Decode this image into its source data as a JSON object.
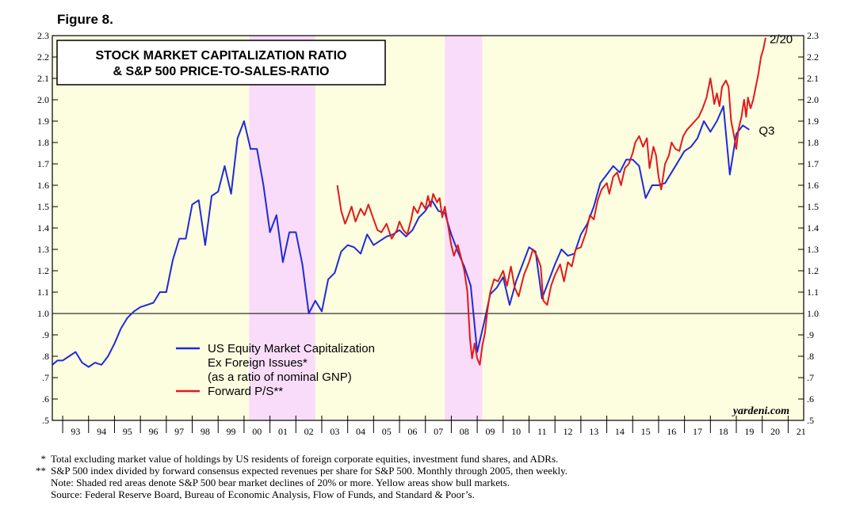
{
  "figure_label": "Figure 8.",
  "title_lines": [
    "STOCK MARKET CAPITALIZATION RATIO",
    "& S&P 500 PRICE-TO-SALES-RATIO"
  ],
  "credit": "yardeni.com",
  "colors": {
    "bull": "#fdfde0",
    "bear": "#f9dcf9",
    "series_blue": "#1f2bd6",
    "series_red": "#e01b1b"
  },
  "footnotes": [
    {
      "mark": "*",
      "text": "Total excluding market value of holdings by US residents of foreign corporate equities, investment fund shares, and ADRs."
    },
    {
      "mark": "**",
      "text": "S&P 500 index divided by forward consensus expected revenues per share for S&P 500. Monthly through 2005, then weekly."
    },
    {
      "mark": "",
      "text": "Note: Shaded red areas denote S&P 500 bear market declines of 20% or more. Yellow areas show bull markets."
    },
    {
      "mark": "",
      "text": "Source: Federal Reserve Board, Bureau of Economic Analysis, Flow of Funds, and Standard & Poor’s."
    }
  ],
  "chart_data": {
    "type": "line",
    "x_range": [
      1992.6,
      2021.6
    ],
    "ylim": [
      0.5,
      2.3
    ],
    "y_ticks": [
      {
        "v": 0.5,
        "label": ".5"
      },
      {
        "v": 0.6,
        "label": ".6"
      },
      {
        "v": 0.7,
        "label": ".7"
      },
      {
        "v": 0.8,
        "label": ".8"
      },
      {
        "v": 0.9,
        "label": ".9"
      },
      {
        "v": 1.0,
        "label": "1.0"
      },
      {
        "v": 1.1,
        "label": "1.1"
      },
      {
        "v": 1.2,
        "label": "1.2"
      },
      {
        "v": 1.3,
        "label": "1.3"
      },
      {
        "v": 1.4,
        "label": "1.4"
      },
      {
        "v": 1.5,
        "label": "1.5"
      },
      {
        "v": 1.6,
        "label": "1.6"
      },
      {
        "v": 1.7,
        "label": "1.7"
      },
      {
        "v": 1.8,
        "label": "1.8"
      },
      {
        "v": 1.9,
        "label": "1.9"
      },
      {
        "v": 2.0,
        "label": "2.0"
      },
      {
        "v": 2.1,
        "label": "2.1"
      },
      {
        "v": 2.2,
        "label": "2.2"
      },
      {
        "v": 2.3,
        "label": "2.3"
      }
    ],
    "x_tick_labels": [
      "93",
      "94",
      "95",
      "96",
      "97",
      "98",
      "99",
      "00",
      "01",
      "02",
      "03",
      "04",
      "05",
      "06",
      "07",
      "08",
      "09",
      "10",
      "11",
      "12",
      "13",
      "14",
      "15",
      "16",
      "17",
      "18",
      "19",
      "20",
      "21"
    ],
    "reference_line": 1.0,
    "shaded_regions": [
      {
        "kind": "bull",
        "from": 1992.6,
        "to": 2000.2
      },
      {
        "kind": "bear",
        "from": 2000.2,
        "to": 2002.75
      },
      {
        "kind": "bull",
        "from": 2002.75,
        "to": 2007.75
      },
      {
        "kind": "bear",
        "from": 2007.75,
        "to": 2009.2
      },
      {
        "kind": "bull",
        "from": 2009.2,
        "to": 2021.6
      }
    ],
    "series": [
      {
        "name": "US Equity Market Capitalization Ex Foreign Issues* (as a ratio of nominal GNP)",
        "legend_lines": [
          "US Equity Market Capitalization",
          "Ex Foreign Issues*",
          "(as a ratio of nominal GNP)"
        ],
        "color": "#1f2bd6",
        "end_label": "Q3",
        "points": [
          [
            1992.6,
            0.76
          ],
          [
            1992.8,
            0.78
          ],
          [
            1993.0,
            0.78
          ],
          [
            1993.25,
            0.8
          ],
          [
            1993.5,
            0.82
          ],
          [
            1993.75,
            0.77
          ],
          [
            1994.0,
            0.75
          ],
          [
            1994.25,
            0.77
          ],
          [
            1994.5,
            0.76
          ],
          [
            1994.75,
            0.8
          ],
          [
            1995.0,
            0.86
          ],
          [
            1995.25,
            0.93
          ],
          [
            1995.5,
            0.98
          ],
          [
            1995.75,
            1.01
          ],
          [
            1996.0,
            1.03
          ],
          [
            1996.25,
            1.04
          ],
          [
            1996.5,
            1.05
          ],
          [
            1996.75,
            1.1
          ],
          [
            1997.0,
            1.1
          ],
          [
            1997.25,
            1.25
          ],
          [
            1997.5,
            1.35
          ],
          [
            1997.75,
            1.35
          ],
          [
            1998.0,
            1.51
          ],
          [
            1998.25,
            1.53
          ],
          [
            1998.5,
            1.32
          ],
          [
            1998.75,
            1.55
          ],
          [
            1999.0,
            1.57
          ],
          [
            1999.25,
            1.69
          ],
          [
            1999.5,
            1.56
          ],
          [
            1999.75,
            1.82
          ],
          [
            2000.0,
            1.9
          ],
          [
            2000.25,
            1.77
          ],
          [
            2000.5,
            1.77
          ],
          [
            2000.75,
            1.6
          ],
          [
            2001.0,
            1.38
          ],
          [
            2001.25,
            1.46
          ],
          [
            2001.5,
            1.24
          ],
          [
            2001.75,
            1.38
          ],
          [
            2002.0,
            1.38
          ],
          [
            2002.25,
            1.23
          ],
          [
            2002.5,
            1.0
          ],
          [
            2002.75,
            1.06
          ],
          [
            2003.0,
            1.01
          ],
          [
            2003.25,
            1.16
          ],
          [
            2003.5,
            1.19
          ],
          [
            2003.75,
            1.29
          ],
          [
            2004.0,
            1.32
          ],
          [
            2004.25,
            1.31
          ],
          [
            2004.5,
            1.28
          ],
          [
            2004.75,
            1.37
          ],
          [
            2005.0,
            1.32
          ],
          [
            2005.25,
            1.34
          ],
          [
            2005.5,
            1.36
          ],
          [
            2005.75,
            1.37
          ],
          [
            2006.0,
            1.39
          ],
          [
            2006.25,
            1.36
          ],
          [
            2006.5,
            1.39
          ],
          [
            2006.75,
            1.45
          ],
          [
            2007.0,
            1.48
          ],
          [
            2007.25,
            1.53
          ],
          [
            2007.5,
            1.48
          ],
          [
            2007.75,
            1.47
          ],
          [
            2008.0,
            1.37
          ],
          [
            2008.25,
            1.29
          ],
          [
            2008.5,
            1.22
          ],
          [
            2008.75,
            1.13
          ],
          [
            2009.0,
            0.82
          ],
          [
            2009.25,
            0.95
          ],
          [
            2009.5,
            1.09
          ],
          [
            2009.75,
            1.12
          ],
          [
            2010.0,
            1.17
          ],
          [
            2010.25,
            1.04
          ],
          [
            2010.5,
            1.15
          ],
          [
            2010.75,
            1.23
          ],
          [
            2011.0,
            1.31
          ],
          [
            2011.25,
            1.29
          ],
          [
            2011.5,
            1.07
          ],
          [
            2011.75,
            1.15
          ],
          [
            2012.0,
            1.23
          ],
          [
            2012.25,
            1.3
          ],
          [
            2012.5,
            1.27
          ],
          [
            2012.75,
            1.28
          ],
          [
            2013.0,
            1.37
          ],
          [
            2013.25,
            1.42
          ],
          [
            2013.5,
            1.5
          ],
          [
            2013.75,
            1.61
          ],
          [
            2014.0,
            1.65
          ],
          [
            2014.25,
            1.69
          ],
          [
            2014.5,
            1.66
          ],
          [
            2014.75,
            1.72
          ],
          [
            2015.0,
            1.72
          ],
          [
            2015.25,
            1.69
          ],
          [
            2015.5,
            1.54
          ],
          [
            2015.75,
            1.6
          ],
          [
            2016.0,
            1.6
          ],
          [
            2016.25,
            1.61
          ],
          [
            2016.5,
            1.66
          ],
          [
            2016.75,
            1.71
          ],
          [
            2017.0,
            1.76
          ],
          [
            2017.25,
            1.78
          ],
          [
            2017.5,
            1.82
          ],
          [
            2017.75,
            1.9
          ],
          [
            2018.0,
            1.85
          ],
          [
            2018.25,
            1.9
          ],
          [
            2018.5,
            1.97
          ],
          [
            2018.75,
            1.65
          ],
          [
            2019.0,
            1.84
          ],
          [
            2019.25,
            1.88
          ],
          [
            2019.5,
            1.86
          ]
        ]
      },
      {
        "name": "Forward P/S**",
        "legend_lines": [
          "Forward P/S**"
        ],
        "color": "#e01b1b",
        "end_label": "2/20",
        "points": [
          [
            2003.6,
            1.6
          ],
          [
            2003.75,
            1.48
          ],
          [
            2003.9,
            1.42
          ],
          [
            2004.0,
            1.45
          ],
          [
            2004.15,
            1.5
          ],
          [
            2004.3,
            1.43
          ],
          [
            2004.5,
            1.49
          ],
          [
            2004.65,
            1.46
          ],
          [
            2004.8,
            1.51
          ],
          [
            2005.0,
            1.44
          ],
          [
            2005.15,
            1.39
          ],
          [
            2005.3,
            1.38
          ],
          [
            2005.5,
            1.42
          ],
          [
            2005.7,
            1.35
          ],
          [
            2005.9,
            1.39
          ],
          [
            2006.0,
            1.43
          ],
          [
            2006.15,
            1.39
          ],
          [
            2006.3,
            1.37
          ],
          [
            2006.45,
            1.44
          ],
          [
            2006.55,
            1.5
          ],
          [
            2006.7,
            1.47
          ],
          [
            2006.85,
            1.52
          ],
          [
            2007.0,
            1.49
          ],
          [
            2007.1,
            1.55
          ],
          [
            2007.2,
            1.5
          ],
          [
            2007.3,
            1.56
          ],
          [
            2007.45,
            1.52
          ],
          [
            2007.55,
            1.54
          ],
          [
            2007.65,
            1.45
          ],
          [
            2007.75,
            1.5
          ],
          [
            2007.85,
            1.43
          ],
          [
            2008.0,
            1.32
          ],
          [
            2008.1,
            1.27
          ],
          [
            2008.25,
            1.32
          ],
          [
            2008.4,
            1.25
          ],
          [
            2008.5,
            1.2
          ],
          [
            2008.62,
            1.1
          ],
          [
            2008.72,
            0.88
          ],
          [
            2008.8,
            0.79
          ],
          [
            2008.9,
            0.86
          ],
          [
            2009.0,
            0.79
          ],
          [
            2009.1,
            0.76
          ],
          [
            2009.2,
            0.85
          ],
          [
            2009.3,
            0.91
          ],
          [
            2009.4,
            1.02
          ],
          [
            2009.5,
            1.1
          ],
          [
            2009.65,
            1.16
          ],
          [
            2009.8,
            1.15
          ],
          [
            2010.0,
            1.2
          ],
          [
            2010.15,
            1.13
          ],
          [
            2010.3,
            1.22
          ],
          [
            2010.45,
            1.12
          ],
          [
            2010.6,
            1.08
          ],
          [
            2010.8,
            1.18
          ],
          [
            2011.0,
            1.24
          ],
          [
            2011.15,
            1.3
          ],
          [
            2011.3,
            1.27
          ],
          [
            2011.45,
            1.22
          ],
          [
            2011.55,
            1.06
          ],
          [
            2011.7,
            1.04
          ],
          [
            2011.85,
            1.13
          ],
          [
            2012.0,
            1.18
          ],
          [
            2012.2,
            1.23
          ],
          [
            2012.35,
            1.15
          ],
          [
            2012.5,
            1.24
          ],
          [
            2012.65,
            1.22
          ],
          [
            2012.8,
            1.3
          ],
          [
            2013.0,
            1.31
          ],
          [
            2013.2,
            1.38
          ],
          [
            2013.35,
            1.46
          ],
          [
            2013.5,
            1.44
          ],
          [
            2013.65,
            1.53
          ],
          [
            2013.8,
            1.58
          ],
          [
            2014.0,
            1.61
          ],
          [
            2014.1,
            1.56
          ],
          [
            2014.25,
            1.64
          ],
          [
            2014.4,
            1.66
          ],
          [
            2014.55,
            1.6
          ],
          [
            2014.7,
            1.68
          ],
          [
            2014.85,
            1.7
          ],
          [
            2015.0,
            1.75
          ],
          [
            2015.1,
            1.8
          ],
          [
            2015.25,
            1.83
          ],
          [
            2015.4,
            1.78
          ],
          [
            2015.55,
            1.82
          ],
          [
            2015.65,
            1.68
          ],
          [
            2015.8,
            1.78
          ],
          [
            2015.9,
            1.74
          ],
          [
            2016.0,
            1.64
          ],
          [
            2016.1,
            1.58
          ],
          [
            2016.25,
            1.7
          ],
          [
            2016.4,
            1.74
          ],
          [
            2016.5,
            1.8
          ],
          [
            2016.65,
            1.77
          ],
          [
            2016.8,
            1.76
          ],
          [
            2016.95,
            1.83
          ],
          [
            2017.1,
            1.86
          ],
          [
            2017.25,
            1.88
          ],
          [
            2017.4,
            1.9
          ],
          [
            2017.55,
            1.92
          ],
          [
            2017.7,
            1.96
          ],
          [
            2017.85,
            2.01
          ],
          [
            2018.0,
            2.1
          ],
          [
            2018.08,
            2.04
          ],
          [
            2018.15,
            1.98
          ],
          [
            2018.25,
            2.03
          ],
          [
            2018.35,
            1.97
          ],
          [
            2018.45,
            2.06
          ],
          [
            2018.6,
            2.09
          ],
          [
            2018.7,
            2.06
          ],
          [
            2018.8,
            1.9
          ],
          [
            2018.9,
            1.84
          ],
          [
            2019.0,
            1.77
          ],
          [
            2019.08,
            1.86
          ],
          [
            2019.2,
            1.92
          ],
          [
            2019.3,
            2.0
          ],
          [
            2019.38,
            1.92
          ],
          [
            2019.45,
            2.01
          ],
          [
            2019.55,
            1.96
          ],
          [
            2019.65,
            2.0
          ],
          [
            2019.75,
            2.06
          ],
          [
            2019.85,
            2.12
          ],
          [
            2019.95,
            2.2
          ],
          [
            2020.05,
            2.24
          ],
          [
            2020.13,
            2.29
          ]
        ]
      }
    ]
  }
}
